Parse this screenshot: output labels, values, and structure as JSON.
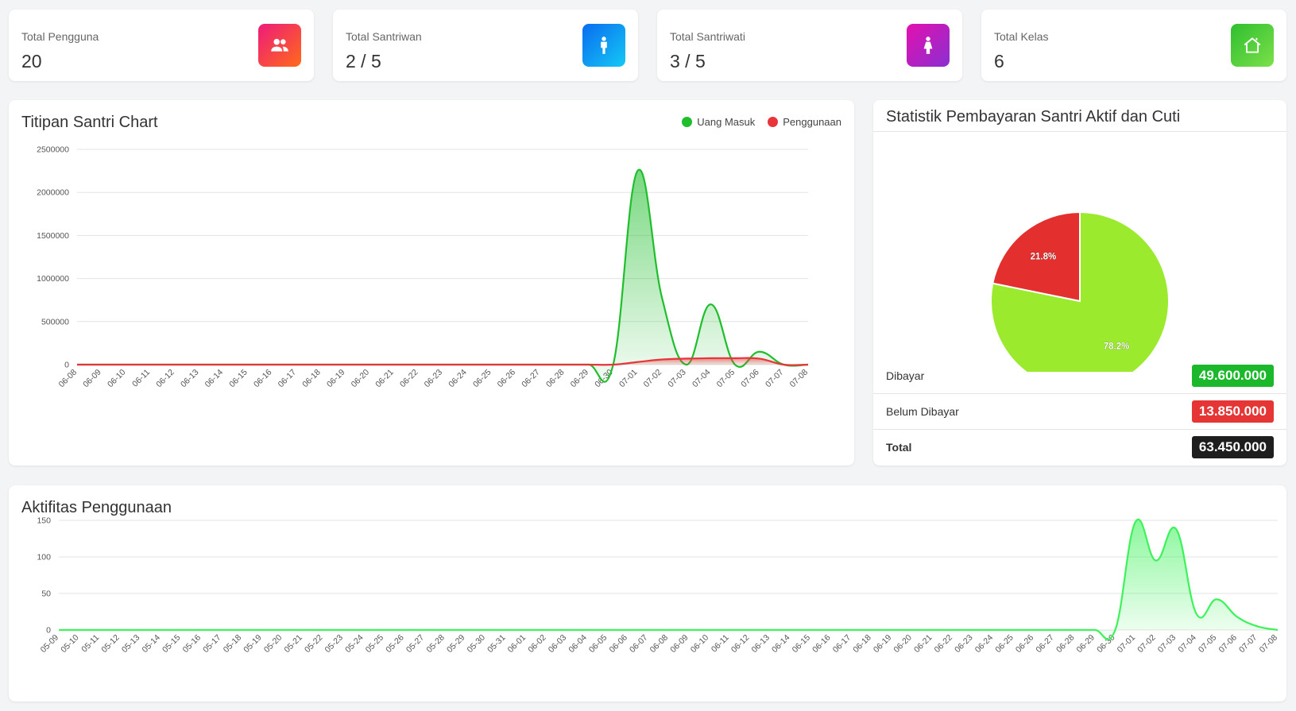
{
  "stats": [
    {
      "label": "Total Pengguna",
      "value": "20",
      "icon": "users-icon",
      "gradient": [
        "#ee1b7a",
        "#ff6a1a"
      ]
    },
    {
      "label": "Total Santriwan",
      "value": "2 / 5",
      "icon": "male-icon",
      "gradient": [
        "#0a6cf0",
        "#14c8f5"
      ]
    },
    {
      "label": "Total Santriwati",
      "value": "3 / 5",
      "icon": "female-icon",
      "gradient": [
        "#e410b0",
        "#8a2fd0"
      ]
    },
    {
      "label": "Total Kelas",
      "value": "6",
      "icon": "home-icon",
      "gradient": [
        "#2fbf2f",
        "#7be04a"
      ]
    }
  ],
  "titipan": {
    "title": "Titipan Santri Chart",
    "legend": [
      {
        "name": "Uang Masuk",
        "color": "#1fbe2c"
      },
      {
        "name": "Penggunaan",
        "color": "#e8343a"
      }
    ]
  },
  "statistik": {
    "title": "Statistik Pembayaran Santri Aktif dan Cuti",
    "rows": [
      {
        "label": "Dibayar",
        "value": "49.600.000",
        "color": "#1ab82a"
      },
      {
        "label": "Belum Dibayar",
        "value": "13.850.000",
        "color": "#e53535"
      },
      {
        "label": "Total",
        "value": "63.450.000",
        "color": "#1e1e1e"
      }
    ]
  },
  "aktifitas": {
    "title": "Aktifitas Penggunaan"
  },
  "chart_data": [
    {
      "type": "area",
      "title": "Titipan Santri Chart",
      "x": [
        "06-08",
        "06-09",
        "06-10",
        "06-11",
        "06-12",
        "06-13",
        "06-14",
        "06-15",
        "06-16",
        "06-17",
        "06-18",
        "06-19",
        "06-20",
        "06-21",
        "06-22",
        "06-23",
        "06-24",
        "06-25",
        "06-26",
        "06-27",
        "06-28",
        "06-29",
        "06-30",
        "07-01",
        "07-02",
        "07-03",
        "07-04",
        "07-05",
        "07-06",
        "07-07",
        "07-08"
      ],
      "series": [
        {
          "name": "Uang Masuk",
          "color": "#1fbe2c",
          "values": [
            0,
            0,
            0,
            0,
            0,
            0,
            0,
            0,
            0,
            0,
            0,
            0,
            0,
            0,
            0,
            0,
            0,
            0,
            0,
            0,
            0,
            0,
            0,
            2250000,
            780000,
            0,
            700000,
            0,
            150000,
            0,
            0
          ]
        },
        {
          "name": "Penggunaan",
          "color": "#e8343a",
          "values": [
            0,
            0,
            0,
            0,
            0,
            0,
            0,
            0,
            0,
            0,
            0,
            0,
            0,
            0,
            0,
            0,
            0,
            0,
            0,
            0,
            0,
            0,
            0,
            30000,
            60000,
            70000,
            75000,
            75000,
            70000,
            0,
            0
          ]
        }
      ],
      "yticks": [
        "0",
        "500000",
        "1000000",
        "1500000",
        "2000000",
        "2500000"
      ],
      "ylim": [
        0,
        2500000
      ],
      "legend": "top-right"
    },
    {
      "type": "pie",
      "title": "Statistik Pembayaran Santri Aktif dan Cuti",
      "slices": [
        {
          "label": "Dibayar",
          "value": 78.2,
          "text": "78.2%",
          "color": "#9bea2e"
        },
        {
          "label": "Belum Dibayar",
          "value": 21.8,
          "text": "21.8%",
          "color": "#e3302f"
        }
      ]
    },
    {
      "type": "area",
      "title": "Aktifitas Penggunaan",
      "x": [
        "05-09",
        "05-10",
        "05-11",
        "05-12",
        "05-13",
        "05-14",
        "05-15",
        "05-16",
        "05-17",
        "05-18",
        "05-19",
        "05-20",
        "05-21",
        "05-22",
        "05-23",
        "05-24",
        "05-25",
        "05-26",
        "05-27",
        "05-28",
        "05-29",
        "05-30",
        "05-31",
        "06-01",
        "06-02",
        "06-03",
        "06-04",
        "06-05",
        "06-06",
        "06-07",
        "06-08",
        "06-09",
        "06-10",
        "06-11",
        "06-12",
        "06-13",
        "06-14",
        "06-15",
        "06-16",
        "06-17",
        "06-18",
        "06-19",
        "06-20",
        "06-21",
        "06-22",
        "06-23",
        "06-24",
        "06-25",
        "06-26",
        "06-27",
        "06-28",
        "06-29",
        "06-30",
        "07-01",
        "07-02",
        "07-03",
        "07-04",
        "07-05",
        "07-06",
        "07-07",
        "07-08"
      ],
      "series": [
        {
          "name": "Aktifitas",
          "color": "#3df25a",
          "values": [
            0,
            0,
            0,
            0,
            0,
            0,
            0,
            0,
            0,
            0,
            0,
            0,
            0,
            0,
            0,
            0,
            0,
            0,
            0,
            0,
            0,
            0,
            0,
            0,
            0,
            0,
            0,
            0,
            0,
            0,
            0,
            0,
            0,
            0,
            0,
            0,
            0,
            0,
            0,
            0,
            0,
            0,
            0,
            0,
            0,
            0,
            0,
            0,
            0,
            0,
            0,
            0,
            0,
            148,
            95,
            138,
            22,
            42,
            18,
            5,
            0
          ]
        }
      ],
      "yticks": [
        "0",
        "50",
        "100",
        "150"
      ],
      "ylim": [
        0,
        150
      ]
    }
  ]
}
